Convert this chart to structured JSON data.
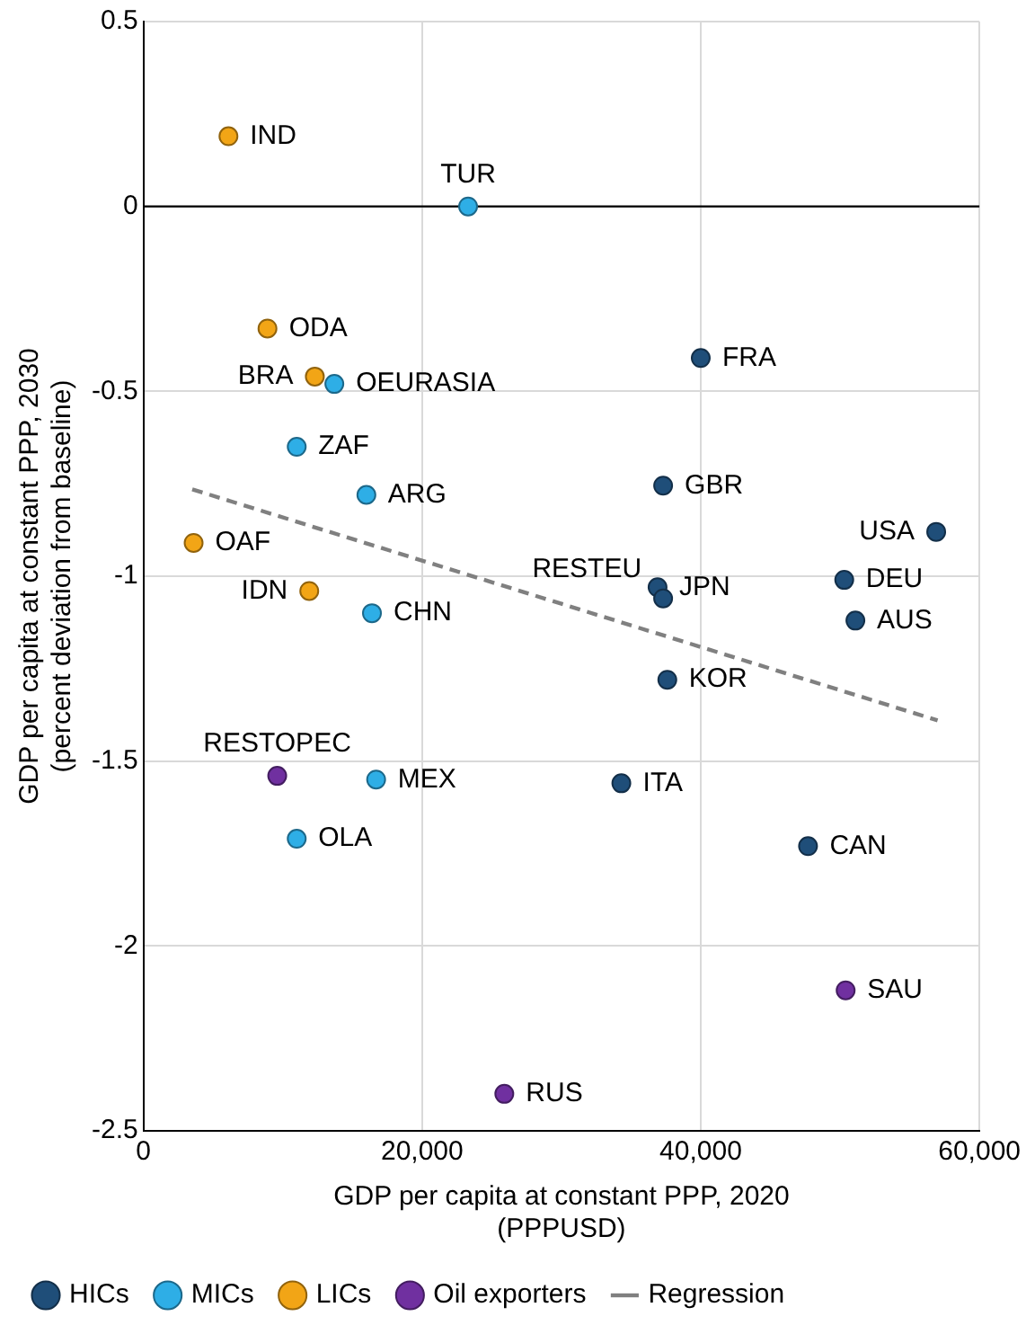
{
  "chart_data": {
    "type": "scatter",
    "xlabel": "GDP per capita at constant PPP, 2020\n(PPPUSD)",
    "ylabel": "GDP per capita at constant PPP, 2030\n(percent deviation from baseline)",
    "xlim": [
      0,
      60000
    ],
    "xticks": [
      0,
      {
        "value": 20000,
        "label": "20,000"
      },
      {
        "value": 40000,
        "label": "40,000"
      },
      {
        "value": 60000,
        "label": "60,000"
      }
    ],
    "ylim": [
      -2.5,
      0.5
    ],
    "yticks": [
      -2.5,
      -2,
      -1.5,
      -1,
      -0.5,
      0,
      0.5
    ],
    "grid": true,
    "legend": "bottom",
    "marker": "circle",
    "ref_lines": [
      {
        "axis": "y",
        "value": 0,
        "color": "#000000"
      }
    ],
    "series": [
      {
        "name": "HICs",
        "color": "#1f4e79",
        "x": [
          40000,
          37300,
          56900,
          36900,
          37300,
          50300,
          51100,
          37600,
          34300,
          47700
        ],
        "values": [
          -0.41,
          -0.755,
          -0.88,
          -1.03,
          -1.06,
          -1.01,
          -1.12,
          -1.28,
          -1.56,
          -1.73
        ]
      },
      {
        "name": "MICs",
        "color": "#2eaee6",
        "x": [
          23300,
          13700,
          11000,
          16000,
          16400,
          16700,
          11000
        ],
        "values": [
          0,
          -0.48,
          -0.65,
          -0.78,
          -1.1,
          -1.55,
          -1.71
        ]
      },
      {
        "name": "LICs",
        "color": "#f2a516",
        "x": [
          6100,
          8900,
          12300,
          3600,
          11900
        ],
        "values": [
          0.19,
          -0.33,
          -0.46,
          -0.91,
          -1.04
        ]
      },
      {
        "name": "Oil exporters",
        "color": "#7030a0",
        "x": [
          9600,
          50400,
          25900
        ],
        "values": [
          -1.54,
          -2.12,
          -2.4
        ]
      },
      {
        "name": "Regression",
        "type": "line",
        "color": "#808080",
        "line_style": "dashed",
        "marker": "none",
        "x": [
          3500,
          57000
        ],
        "values": [
          -0.765,
          -1.39
        ]
      }
    ],
    "annotations": [
      {
        "text": "FRA",
        "x": 40000,
        "y": -0.41
      },
      {
        "text": "GBR",
        "x": 37300,
        "y": -0.755
      },
      {
        "text": "USA",
        "x": 56900,
        "y": -0.88
      },
      {
        "text": "JPN",
        "x": 36900,
        "y": -1.03
      },
      {
        "text": "RESTEU",
        "x": 37300,
        "y": -1.06
      },
      {
        "text": "DEU",
        "x": 50300,
        "y": -1.01
      },
      {
        "text": "AUS",
        "x": 51100,
        "y": -1.12
      },
      {
        "text": "KOR",
        "x": 37600,
        "y": -1.28
      },
      {
        "text": "ITA",
        "x": 34300,
        "y": -1.56
      },
      {
        "text": "CAN",
        "x": 47700,
        "y": -1.73
      },
      {
        "text": "TUR",
        "x": 23300,
        "y": 0
      },
      {
        "text": "OEURASIA",
        "x": 13700,
        "y": -0.48
      },
      {
        "text": "ZAF",
        "x": 11000,
        "y": -0.65
      },
      {
        "text": "ARG",
        "x": 16000,
        "y": -0.78
      },
      {
        "text": "CHN",
        "x": 16400,
        "y": -1.1
      },
      {
        "text": "MEX",
        "x": 16700,
        "y": -1.55
      },
      {
        "text": "OLA",
        "x": 11000,
        "y": -1.71
      },
      {
        "text": "IND",
        "x": 6100,
        "y": 0.19
      },
      {
        "text": "ODA",
        "x": 8900,
        "y": -0.33
      },
      {
        "text": "BRA",
        "x": 12300,
        "y": -0.46
      },
      {
        "text": "OAF",
        "x": 3600,
        "y": -0.91
      },
      {
        "text": "IDN",
        "x": 11900,
        "y": -1.04
      },
      {
        "text": "RESTOPEC",
        "x": 9600,
        "y": -1.54
      },
      {
        "text": "SAU",
        "x": 50400,
        "y": -2.12
      },
      {
        "text": "RUS",
        "x": 25900,
        "y": -2.4
      }
    ]
  }
}
